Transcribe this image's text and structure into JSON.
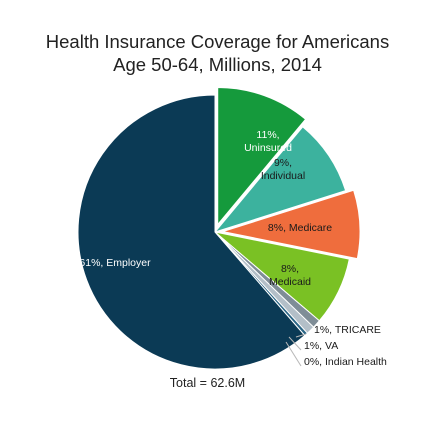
{
  "chart_data": {
    "type": "pie",
    "title": "Health Insurance Coverage for Americans",
    "subtitle": "Age 50-64, Millions, 2014",
    "total_label": "Total = 62.6M",
    "slices": [
      {
        "name": "Uninsured",
        "label": "11%, Uninsured",
        "value": 11,
        "color": "#159a3c",
        "offset": 1
      },
      {
        "name": "Individual",
        "label": "9%, Individual",
        "value": 9,
        "color": "#3cb29e",
        "offset": 0
      },
      {
        "name": "Medicare",
        "label": "8%, Medicare",
        "value": 8,
        "color": "#ef6d3d",
        "offset": 1
      },
      {
        "name": "Medicaid",
        "label": "8%, Medicaid",
        "value": 8,
        "color": "#7ac124",
        "offset": 0
      },
      {
        "name": "TRICARE",
        "label": "1%, TRICARE",
        "value": 1,
        "color": "#7f8d97",
        "offset": 0
      },
      {
        "name": "VA",
        "label": "1%, VA",
        "value": 1,
        "color": "#b3bfc8",
        "offset": 0
      },
      {
        "name": "Indian Health",
        "label": "0%, Indian Health",
        "value": 0.4,
        "color": "#2b6686",
        "offset": 0
      },
      {
        "name": "Employer",
        "label": "61%, Employer",
        "value": 61,
        "color": "#0b3a55",
        "offset": 0
      }
    ]
  }
}
